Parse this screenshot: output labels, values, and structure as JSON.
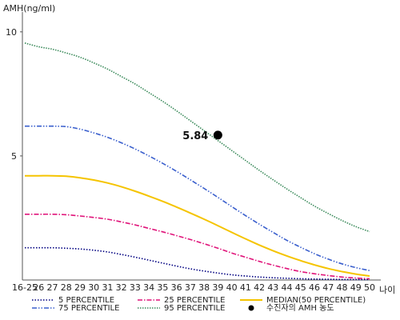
{
  "chart_data": {
    "type": "line",
    "ylabel": "AMH(ng/ml)",
    "xlabel": "나이",
    "x_categories": [
      "16-25",
      "26",
      "27",
      "28",
      "29",
      "30",
      "31",
      "32",
      "33",
      "34",
      "35",
      "36",
      "37",
      "38",
      "39",
      "40",
      "41",
      "42",
      "43",
      "44",
      "45",
      "46",
      "47",
      "48",
      "49",
      "50"
    ],
    "y_ticks": [
      5,
      10
    ],
    "ylim": [
      0,
      10.8
    ],
    "series": [
      {
        "name": "5 PERCENTILE",
        "color": "#000080",
        "dash": "1.5,2",
        "values": [
          1.3,
          1.3,
          1.3,
          1.28,
          1.25,
          1.2,
          1.13,
          1.03,
          0.92,
          0.8,
          0.68,
          0.56,
          0.45,
          0.36,
          0.28,
          0.21,
          0.16,
          0.12,
          0.09,
          0.07,
          0.05,
          0.04,
          0.03,
          0.02,
          0.02,
          0.02
        ]
      },
      {
        "name": "25 PERCENTILE",
        "color": "#e0147a",
        "dash": "6,2,1.5,2",
        "values": [
          2.65,
          2.65,
          2.65,
          2.63,
          2.58,
          2.52,
          2.45,
          2.34,
          2.22,
          2.08,
          1.94,
          1.79,
          1.63,
          1.46,
          1.28,
          1.09,
          0.92,
          0.75,
          0.6,
          0.46,
          0.34,
          0.25,
          0.18,
          0.12,
          0.08,
          0.05
        ]
      },
      {
        "name": "MEDIAN(50 PERCENTILE)",
        "color": "#f5c400",
        "dash": "",
        "values": [
          4.2,
          4.2,
          4.2,
          4.18,
          4.12,
          4.03,
          3.91,
          3.76,
          3.58,
          3.38,
          3.17,
          2.94,
          2.7,
          2.45,
          2.19,
          1.92,
          1.66,
          1.41,
          1.18,
          0.97,
          0.78,
          0.61,
          0.46,
          0.34,
          0.24,
          0.16
        ]
      },
      {
        "name": "75 PERCENTILE",
        "color": "#3a5fcd",
        "dash": "6,2,1.5,2,1.5,2",
        "values": [
          6.2,
          6.2,
          6.2,
          6.18,
          6.08,
          5.93,
          5.75,
          5.53,
          5.28,
          5.0,
          4.7,
          4.38,
          4.04,
          3.69,
          3.33,
          2.96,
          2.6,
          2.25,
          1.92,
          1.6,
          1.32,
          1.06,
          0.84,
          0.65,
          0.5,
          0.38
        ]
      },
      {
        "name": "95 PERCENTILE",
        "color": "#3a8a5a",
        "dash": "1.5,1.5",
        "values": [
          9.55,
          9.4,
          9.3,
          9.15,
          8.98,
          8.75,
          8.5,
          8.2,
          7.9,
          7.55,
          7.2,
          6.82,
          6.42,
          6.02,
          5.62,
          5.22,
          4.82,
          4.42,
          4.04,
          3.67,
          3.32,
          2.98,
          2.68,
          2.4,
          2.15,
          1.95
        ]
      }
    ],
    "highlight": {
      "x": "39",
      "y": 5.84,
      "label": "5.84",
      "color": "#000000"
    },
    "legend": [
      {
        "key": "5",
        "label": "5 PERCENTILE"
      },
      {
        "key": "25",
        "label": "25 PERCENTILE"
      },
      {
        "key": "50",
        "label": "MEDIAN(50 PERCENTILE)"
      },
      {
        "key": "75",
        "label": "75 PERCENTILE"
      },
      {
        "key": "95",
        "label": "95 PERCENTILE"
      },
      {
        "key": "dot",
        "label": "수진자의 AMH 농도"
      }
    ],
    "legend_position": "bottom",
    "grid": false
  }
}
